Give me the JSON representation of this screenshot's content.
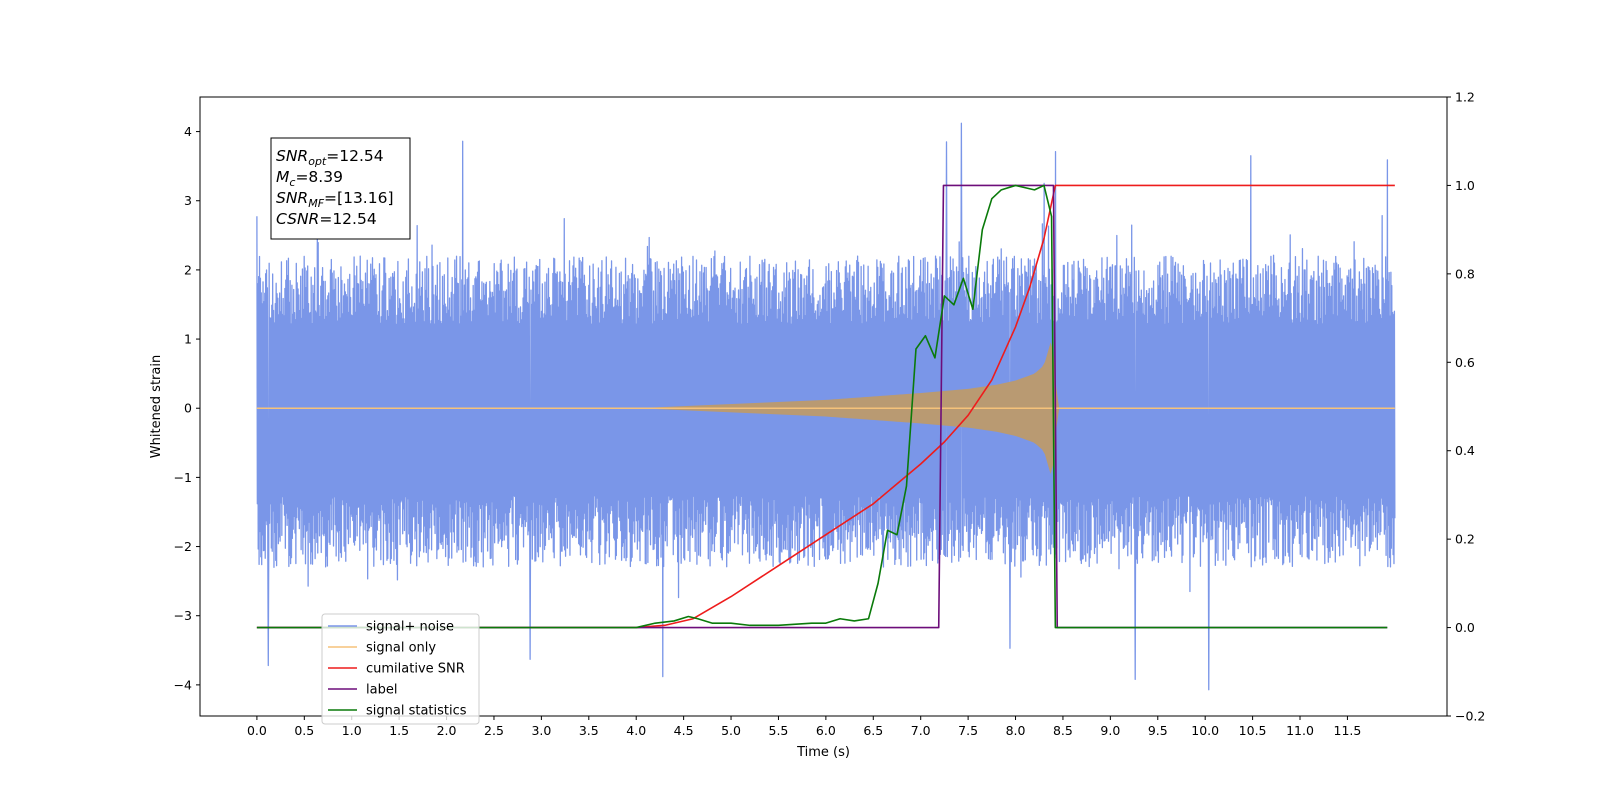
{
  "chart_data": {
    "type": "line",
    "xlabel": "Time (s)",
    "ylabel": "Whitened strain",
    "xlim": [
      -0.6,
      12.55
    ],
    "ylim": [
      -4.45,
      4.5
    ],
    "y2lim": [
      -0.2,
      1.2
    ],
    "x_ticks": [
      0.0,
      0.5,
      1.0,
      1.5,
      2.0,
      2.5,
      3.0,
      3.5,
      4.0,
      4.5,
      5.0,
      5.5,
      6.0,
      6.5,
      7.0,
      7.5,
      8.0,
      8.5,
      9.0,
      9.5,
      10.0,
      10.5,
      11.0,
      11.5
    ],
    "x_tick_labels": [
      "0.0",
      "0.5",
      "1.0",
      "1.5",
      "2.0",
      "2.5",
      "3.0",
      "3.5",
      "4.0",
      "4.5",
      "5.0",
      "5.5",
      "6.0",
      "6.5",
      "7.0",
      "7.5",
      "8.0",
      "8.5",
      "9.0",
      "9.5",
      "10.0",
      "10.5",
      "11.0",
      "11.5"
    ],
    "y_ticks": [
      4,
      3,
      2,
      1,
      0,
      -1,
      -2,
      -3,
      -4
    ],
    "y_tick_labels": [
      "4",
      "3",
      "2",
      "1",
      "0",
      "−1",
      "−2",
      "−3",
      "−4"
    ],
    "y2_ticks": [
      1.2,
      1.0,
      0.8,
      0.6,
      0.4,
      0.2,
      0.0,
      -0.2
    ],
    "y2_tick_labels": [
      "1.2",
      "1.0",
      "0.8",
      "0.6",
      "0.4",
      "0.2",
      "0.0",
      "−0.2"
    ],
    "grid": false,
    "legend_position": "lower-left",
    "stats": [
      {
        "base": "SNR",
        "sub": "opt",
        "value": "=12.54"
      },
      {
        "base": "M",
        "sub": "c",
        "value": "=8.39"
      },
      {
        "base": "SNR",
        "sub": "MF",
        "value": "=[13.16]"
      },
      {
        "base": "CSNR",
        "sub": "",
        "value": "=12.54"
      }
    ],
    "series": [
      {
        "name": "signal+ noise",
        "axis": "left",
        "color": "#7a96e8",
        "kind": "noise",
        "x_start": 0.0,
        "x_end": 12.0,
        "typical_amplitude": 1.0,
        "envelope_min": [
          -2.3,
          2.2
        ],
        "peaks": [
          {
            "x": 2.17,
            "y": 3.86
          },
          {
            "x": 7.43,
            "y": 4.12
          },
          {
            "x": 7.27,
            "y": 3.85
          },
          {
            "x": 8.42,
            "y": 3.71
          },
          {
            "x": 10.48,
            "y": 3.65
          },
          {
            "x": 11.92,
            "y": 3.59
          },
          {
            "x": 4.28,
            "y": -3.88
          },
          {
            "x": 0.12,
            "y": -3.72
          },
          {
            "x": 9.26,
            "y": -3.92
          },
          {
            "x": 10.04,
            "y": -4.07
          },
          {
            "x": 7.94,
            "y": -3.47
          },
          {
            "x": 2.88,
            "y": -3.63
          }
        ]
      },
      {
        "name": "signal only",
        "axis": "left",
        "color": "#f5c27a",
        "kind": "chirp-envelope",
        "x": [
          0.0,
          4.0,
          5.0,
          6.0,
          6.5,
          7.0,
          7.5,
          7.8,
          8.0,
          8.2,
          8.3,
          8.38,
          8.42,
          8.44,
          12.0
        ],
        "envelope": [
          0.0,
          0.0,
          0.06,
          0.12,
          0.17,
          0.22,
          0.28,
          0.34,
          0.4,
          0.5,
          0.62,
          1.0,
          0.6,
          0.0,
          0.0
        ]
      },
      {
        "name": "cumilative SNR",
        "axis": "right",
        "color": "#ee1c1c",
        "x": [
          0.0,
          4.0,
          4.3,
          4.6,
          5.0,
          5.5,
          6.0,
          6.5,
          7.0,
          7.25,
          7.5,
          7.75,
          8.0,
          8.15,
          8.3,
          8.38,
          8.42,
          8.43,
          12.0
        ],
        "values": [
          0.0,
          0.0,
          0.005,
          0.02,
          0.07,
          0.14,
          0.21,
          0.28,
          0.37,
          0.42,
          0.48,
          0.56,
          0.68,
          0.77,
          0.88,
          0.96,
          1.0,
          1.0,
          1.0
        ]
      },
      {
        "name": "label",
        "axis": "right",
        "color": "#6d0d7a",
        "x": [
          0.0,
          7.19,
          7.24,
          8.4,
          8.44,
          11.92
        ],
        "values": [
          0.0,
          0.0,
          1.0,
          1.0,
          0.0,
          0.0
        ]
      },
      {
        "name": "signal statistics",
        "axis": "right",
        "color": "#0a7a0a",
        "x": [
          0.0,
          4.0,
          4.2,
          4.4,
          4.55,
          4.65,
          4.8,
          5.0,
          5.2,
          5.5,
          5.85,
          6.0,
          6.15,
          6.3,
          6.45,
          6.55,
          6.65,
          6.75,
          6.85,
          6.95,
          7.05,
          7.15,
          7.25,
          7.35,
          7.45,
          7.55,
          7.65,
          7.75,
          7.85,
          8.0,
          8.2,
          8.3,
          8.38,
          8.42,
          11.92
        ],
        "values": [
          0.0,
          0.0,
          0.01,
          0.015,
          0.025,
          0.02,
          0.01,
          0.01,
          0.005,
          0.005,
          0.01,
          0.01,
          0.02,
          0.015,
          0.02,
          0.1,
          0.22,
          0.21,
          0.32,
          0.63,
          0.66,
          0.61,
          0.75,
          0.73,
          0.79,
          0.72,
          0.9,
          0.97,
          0.99,
          1.0,
          0.99,
          1.0,
          0.93,
          0.0,
          0.0
        ]
      }
    ]
  }
}
